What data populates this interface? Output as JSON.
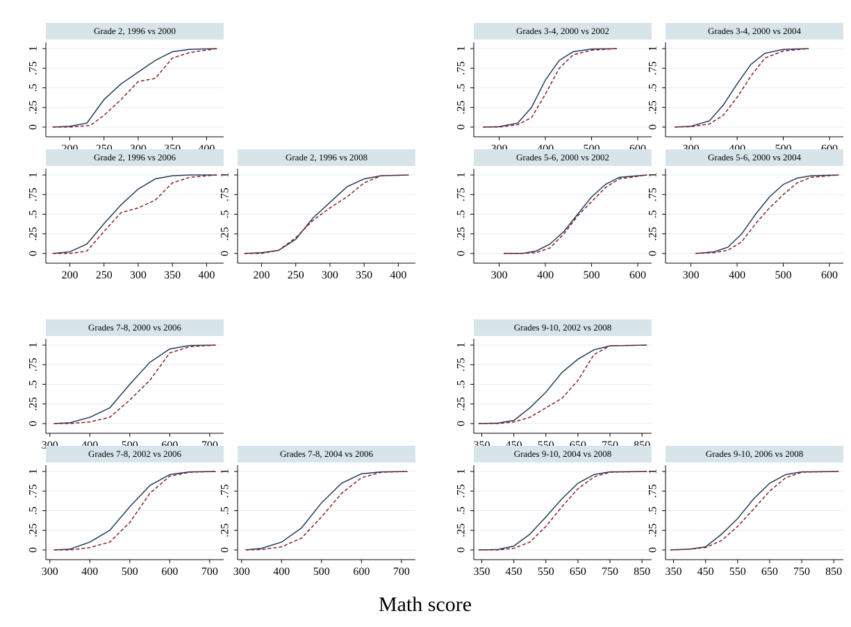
{
  "chart_data": {
    "type": "line",
    "xlabel": "Math score",
    "ylabel": "",
    "ylim": [
      0,
      1
    ],
    "y_ticks": [
      "0",
      ".25",
      ".5",
      ".75",
      "1"
    ],
    "colors": {
      "series_a": "#1f3b5a",
      "series_b": "#8b1a2b",
      "strip": "#d7e4ea",
      "grid": "#e6ecef"
    },
    "grid": true,
    "groups": [
      {
        "x_ticks": [
          "200",
          "250",
          "300",
          "350",
          "400"
        ],
        "xlim": [
          165,
          425
        ],
        "panels": [
          {
            "row": 0,
            "col": 0,
            "title": "Grade 2, 1996 vs 2000",
            "xmin": 175,
            "xmax": 415,
            "series": [
              {
                "style": "solid",
                "x": [
                  175,
                  200,
                  225,
                  250,
                  275,
                  300,
                  325,
                  350,
                  375,
                  415
                ],
                "y": [
                  0,
                  0.01,
                  0.05,
                  0.35,
                  0.55,
                  0.7,
                  0.85,
                  0.96,
                  0.99,
                  1
                ]
              },
              {
                "style": "dash",
                "x": [
                  175,
                  200,
                  230,
                  250,
                  275,
                  300,
                  325,
                  350,
                  375,
                  415
                ],
                "y": [
                  0,
                  0,
                  0.02,
                  0.15,
                  0.35,
                  0.58,
                  0.62,
                  0.88,
                  0.95,
                  1
                ]
              }
            ]
          },
          {
            "row": 1,
            "col": 0,
            "title": "Grade 2, 1996 vs 2006",
            "xmin": 175,
            "xmax": 415,
            "series": [
              {
                "style": "solid",
                "x": [
                  175,
                  200,
                  225,
                  250,
                  275,
                  300,
                  325,
                  350,
                  375,
                  415
                ],
                "y": [
                  0,
                  0.02,
                  0.12,
                  0.38,
                  0.62,
                  0.82,
                  0.95,
                  0.99,
                  1,
                  1
                ]
              },
              {
                "style": "dash",
                "x": [
                  175,
                  200,
                  225,
                  250,
                  275,
                  300,
                  325,
                  350,
                  375,
                  415
                ],
                "y": [
                  0,
                  0,
                  0.03,
                  0.28,
                  0.52,
                  0.58,
                  0.68,
                  0.9,
                  0.97,
                  1
                ]
              }
            ]
          },
          {
            "row": 1,
            "col": 1,
            "title": "Grade 2, 1996 vs 2008",
            "xmin": 175,
            "xmax": 415,
            "series": [
              {
                "style": "solid",
                "x": [
                  175,
                  200,
                  225,
                  250,
                  275,
                  300,
                  325,
                  350,
                  375,
                  415
                ],
                "y": [
                  0,
                  0.01,
                  0.04,
                  0.18,
                  0.45,
                  0.65,
                  0.85,
                  0.95,
                  0.99,
                  1
                ]
              },
              {
                "style": "dash",
                "x": [
                  175,
                  200,
                  225,
                  250,
                  275,
                  300,
                  325,
                  350,
                  375,
                  415
                ],
                "y": [
                  0,
                  0,
                  0.04,
                  0.2,
                  0.42,
                  0.58,
                  0.72,
                  0.9,
                  0.99,
                  1
                ]
              }
            ]
          }
        ]
      },
      {
        "x_ticks": [
          "300",
          "400",
          "500",
          "600"
        ],
        "xlim": [
          245,
          630
        ],
        "panels": [
          {
            "row": 0,
            "col": 2,
            "title": "Grades 3-4, 2000 vs 2002",
            "xmin": 265,
            "xmax": 555,
            "series": [
              {
                "style": "solid",
                "x": [
                  265,
                  300,
                  340,
                  370,
                  400,
                  430,
                  460,
                  500,
                  555
                ],
                "y": [
                  0,
                  0.005,
                  0.05,
                  0.25,
                  0.6,
                  0.85,
                  0.96,
                  0.995,
                  1
                ]
              },
              {
                "style": "dash",
                "x": [
                  265,
                  300,
                  340,
                  370,
                  400,
                  430,
                  460,
                  500,
                  555
                ],
                "y": [
                  0,
                  0,
                  0.03,
                  0.12,
                  0.42,
                  0.75,
                  0.92,
                  0.98,
                  1
                ]
              }
            ]
          },
          {
            "row": 0,
            "col": 3,
            "title": "Grades 3-4, 2000 vs 2004",
            "xmin": 265,
            "xmax": 555,
            "series": [
              {
                "style": "solid",
                "x": [
                  265,
                  300,
                  340,
                  370,
                  400,
                  430,
                  460,
                  500,
                  555
                ],
                "y": [
                  0,
                  0.01,
                  0.08,
                  0.28,
                  0.55,
                  0.8,
                  0.94,
                  0.99,
                  1
                ]
              },
              {
                "style": "dash",
                "x": [
                  265,
                  300,
                  340,
                  370,
                  400,
                  430,
                  460,
                  500,
                  555
                ],
                "y": [
                  0,
                  0.005,
                  0.04,
                  0.15,
                  0.38,
                  0.65,
                  0.88,
                  0.97,
                  1
                ]
              }
            ]
          },
          {
            "row": 1,
            "col": 2,
            "title": "Grades 5-6, 2000 vs 2002",
            "xmin": 310,
            "xmax": 620,
            "series": [
              {
                "style": "solid",
                "x": [
                  310,
                  350,
                  380,
                  410,
                  440,
                  470,
                  500,
                  530,
                  560,
                  620
                ],
                "y": [
                  0,
                  0,
                  0.03,
                  0.12,
                  0.28,
                  0.5,
                  0.72,
                  0.88,
                  0.97,
                  1
                ]
              },
              {
                "style": "dash",
                "x": [
                  310,
                  350,
                  380,
                  410,
                  440,
                  470,
                  500,
                  530,
                  560,
                  620
                ],
                "y": [
                  0,
                  0,
                  0.01,
                  0.07,
                  0.25,
                  0.48,
                  0.66,
                  0.84,
                  0.95,
                  1
                ]
              }
            ]
          },
          {
            "row": 1,
            "col": 3,
            "title": "Grades 5-6, 2000 vs 2004",
            "xmin": 310,
            "xmax": 620,
            "series": [
              {
                "style": "solid",
                "x": [
                  310,
                  350,
                  380,
                  410,
                  440,
                  470,
                  500,
                  530,
                  560,
                  620
                ],
                "y": [
                  0,
                  0.02,
                  0.08,
                  0.25,
                  0.5,
                  0.72,
                  0.88,
                  0.96,
                  0.99,
                  1
                ]
              },
              {
                "style": "dash",
                "x": [
                  310,
                  350,
                  380,
                  410,
                  440,
                  470,
                  500,
                  530,
                  560,
                  620
                ],
                "y": [
                  0,
                  0.01,
                  0.04,
                  0.15,
                  0.38,
                  0.58,
                  0.75,
                  0.9,
                  0.97,
                  1
                ]
              }
            ]
          }
        ]
      },
      {
        "x_ticks": [
          "300",
          "400",
          "500",
          "600",
          "700"
        ],
        "xlim": [
          290,
          735
        ],
        "panels": [
          {
            "row": 2,
            "col": 0,
            "title": "Grades 7-8, 2000 vs 2006",
            "xmin": 310,
            "xmax": 715,
            "series": [
              {
                "style": "solid",
                "x": [
                  310,
                  350,
                  400,
                  450,
                  500,
                  550,
                  600,
                  650,
                  715
                ],
                "y": [
                  0,
                  0.01,
                  0.08,
                  0.2,
                  0.5,
                  0.78,
                  0.95,
                  0.995,
                  1
                ]
              },
              {
                "style": "dash",
                "x": [
                  310,
                  350,
                  400,
                  450,
                  500,
                  550,
                  600,
                  650,
                  715
                ],
                "y": [
                  0,
                  0,
                  0.02,
                  0.08,
                  0.3,
                  0.55,
                  0.9,
                  0.98,
                  1
                ]
              }
            ]
          },
          {
            "row": 3,
            "col": 0,
            "title": "Grades 7-8, 2002 vs 2006",
            "xmin": 310,
            "xmax": 715,
            "series": [
              {
                "style": "solid",
                "x": [
                  310,
                  350,
                  400,
                  450,
                  500,
                  550,
                  600,
                  650,
                  715
                ],
                "y": [
                  0,
                  0.01,
                  0.1,
                  0.25,
                  0.55,
                  0.82,
                  0.96,
                  0.995,
                  1
                ]
              },
              {
                "style": "dash",
                "x": [
                  310,
                  350,
                  400,
                  450,
                  500,
                  550,
                  600,
                  650,
                  715
                ],
                "y": [
                  0,
                  0,
                  0.03,
                  0.1,
                  0.35,
                  0.72,
                  0.94,
                  0.99,
                  1
                ]
              }
            ]
          },
          {
            "row": 3,
            "col": 1,
            "title": "Grades 7-8, 2004 vs 2006",
            "xmin": 310,
            "xmax": 715,
            "series": [
              {
                "style": "solid",
                "x": [
                  310,
                  350,
                  400,
                  450,
                  500,
                  550,
                  600,
                  650,
                  715
                ],
                "y": [
                  0,
                  0.02,
                  0.1,
                  0.28,
                  0.6,
                  0.85,
                  0.97,
                  0.995,
                  1
                ]
              },
              {
                "style": "dash",
                "x": [
                  310,
                  350,
                  400,
                  450,
                  500,
                  550,
                  600,
                  650,
                  715
                ],
                "y": [
                  0,
                  0.005,
                  0.04,
                  0.15,
                  0.42,
                  0.72,
                  0.92,
                  0.99,
                  1
                ]
              }
            ]
          }
        ]
      },
      {
        "x_ticks": [
          "350",
          "450",
          "550",
          "650",
          "750",
          "850"
        ],
        "xlim": [
          325,
          880
        ],
        "panels": [
          {
            "row": 2,
            "col": 2,
            "title": "Grades 9-10, 2002 vs 2008",
            "xmin": 340,
            "xmax": 865,
            "series": [
              {
                "style": "solid",
                "x": [
                  340,
                  400,
                  450,
                  500,
                  550,
                  600,
                  650,
                  700,
                  750,
                  865
                ],
                "y": [
                  0,
                  0.005,
                  0.04,
                  0.2,
                  0.4,
                  0.65,
                  0.82,
                  0.94,
                  0.99,
                  1
                ]
              },
              {
                "style": "dash",
                "x": [
                  340,
                  400,
                  450,
                  500,
                  550,
                  600,
                  650,
                  700,
                  750,
                  865
                ],
                "y": [
                  0,
                  0,
                  0.02,
                  0.08,
                  0.2,
                  0.32,
                  0.55,
                  0.88,
                  0.99,
                  1
                ]
              }
            ]
          },
          {
            "row": 3,
            "col": 2,
            "title": "Grades 9-10, 2004 vs 2008",
            "xmin": 340,
            "xmax": 865,
            "series": [
              {
                "style": "solid",
                "x": [
                  340,
                  400,
                  450,
                  500,
                  550,
                  600,
                  650,
                  700,
                  750,
                  865
                ],
                "y": [
                  0,
                  0.005,
                  0.05,
                  0.2,
                  0.42,
                  0.65,
                  0.85,
                  0.96,
                  0.995,
                  1
                ]
              },
              {
                "style": "dash",
                "x": [
                  340,
                  400,
                  450,
                  500,
                  550,
                  600,
                  650,
                  700,
                  750,
                  865
                ],
                "y": [
                  0,
                  0,
                  0.02,
                  0.1,
                  0.3,
                  0.55,
                  0.78,
                  0.93,
                  0.99,
                  1
                ]
              }
            ]
          },
          {
            "row": 3,
            "col": 3,
            "title": "Grades 9-10, 2006 vs 2008",
            "xmin": 340,
            "xmax": 865,
            "series": [
              {
                "style": "solid",
                "x": [
                  340,
                  400,
                  450,
                  500,
                  550,
                  600,
                  650,
                  700,
                  750,
                  865
                ],
                "y": [
                  0,
                  0.01,
                  0.04,
                  0.2,
                  0.4,
                  0.65,
                  0.85,
                  0.96,
                  0.995,
                  1
                ]
              },
              {
                "style": "dash",
                "x": [
                  340,
                  400,
                  450,
                  500,
                  550,
                  600,
                  650,
                  700,
                  750,
                  865
                ],
                "y": [
                  0,
                  0.01,
                  0.03,
                  0.12,
                  0.3,
                  0.52,
                  0.75,
                  0.92,
                  0.99,
                  1
                ]
              }
            ]
          }
        ]
      }
    ]
  }
}
